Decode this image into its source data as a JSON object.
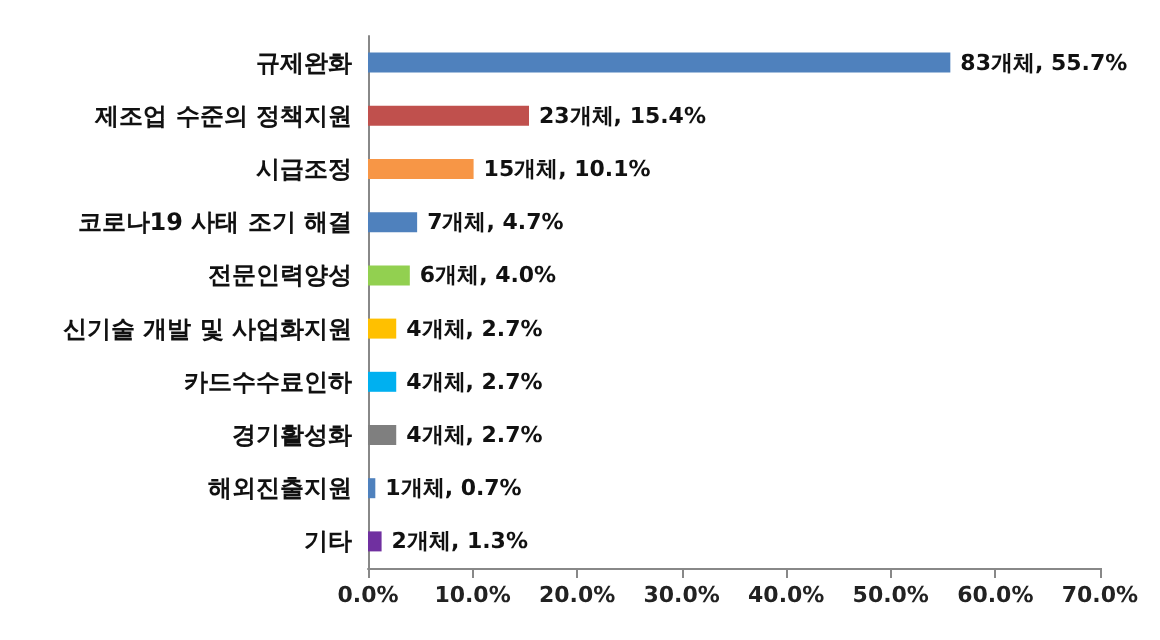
{
  "chart_data": {
    "type": "bar",
    "orientation": "horizontal",
    "categories": [
      "규제완화",
      "제조업 수준의 정책지원",
      "시급조정",
      "코로나19 사태 조기 해결",
      "전문인력양성",
      "신기술 개발 및 사업화지원",
      "카드수수료인하",
      "경기활성화",
      "해외진출지원",
      "기타"
    ],
    "values": [
      55.7,
      15.4,
      10.1,
      4.7,
      4.0,
      2.7,
      2.7,
      2.7,
      0.7,
      1.3
    ],
    "colors": [
      "#4f81bd",
      "#c0504d",
      "#f79646",
      "#4f81bd",
      "#92d050",
      "#ffc000",
      "#00b0f0",
      "#7f7f7f",
      "#4f81bd",
      "#7030a0"
    ],
    "value_labels": [
      "83개체, 55.7%",
      "23개체, 15.4%",
      "15개체, 10.1%",
      "7개체, 4.7%",
      "6개체, 4.0%",
      "4개체, 2.7%",
      "4개체, 2.7%",
      "4개체, 2.7%",
      "1개체, 0.7%",
      "2개체, 1.3%"
    ],
    "xlim": [
      0,
      70
    ],
    "xticks": [
      {
        "value": 0,
        "label": "0.0%"
      },
      {
        "value": 10,
        "label": "10.0%"
      },
      {
        "value": 20,
        "label": "20.0%"
      },
      {
        "value": 30,
        "label": "30.0%"
      },
      {
        "value": 40,
        "label": "40.0%"
      },
      {
        "value": 50,
        "label": "50.0%"
      },
      {
        "value": 60,
        "label": "60.0%"
      },
      {
        "value": 70,
        "label": "70.0%"
      }
    ],
    "grid": false
  }
}
